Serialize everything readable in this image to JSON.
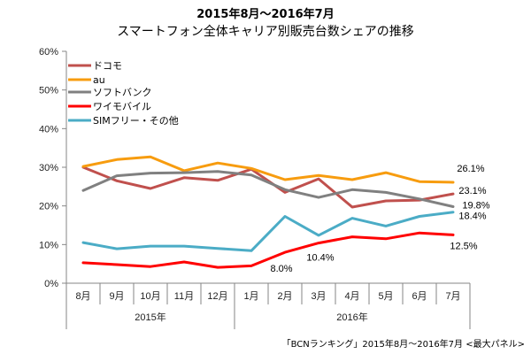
{
  "chart_data": {
    "type": "line",
    "title": "2015年8月～2016年7月",
    "subtitle": "スマートフォン全体キャリア別販売台数シェアの推移",
    "categories": [
      "8月",
      "9月",
      "10月",
      "11月",
      "12月",
      "1月",
      "2月",
      "3月",
      "4月",
      "5月",
      "6月",
      "7月"
    ],
    "year_groups": [
      {
        "label": "2015年",
        "span": 5
      },
      {
        "label": "2016年",
        "span": 7
      }
    ],
    "ylim": [
      0,
      60
    ],
    "yticks": [
      0,
      10,
      20,
      30,
      40,
      50,
      60
    ],
    "ytick_labels": [
      "0%",
      "10%",
      "20%",
      "30%",
      "40%",
      "50%",
      "60%"
    ],
    "xlabel": "",
    "ylabel": "",
    "grid": false,
    "legend_position": "top-left",
    "series": [
      {
        "name": "ドコモ",
        "color": "#c0504d",
        "values": [
          30.0,
          26.5,
          24.5,
          27.3,
          26.6,
          29.5,
          23.5,
          27.0,
          19.7,
          21.3,
          21.5,
          23.1
        ]
      },
      {
        "name": "au",
        "color": "#f79c0f",
        "values": [
          30.2,
          32.0,
          32.7,
          29.1,
          31.1,
          29.7,
          26.8,
          27.9,
          26.8,
          28.6,
          26.3,
          26.1
        ]
      },
      {
        "name": "ソフトバンク",
        "color": "#808080",
        "values": [
          24.0,
          27.8,
          28.5,
          28.6,
          28.9,
          28.0,
          24.2,
          22.2,
          24.2,
          23.5,
          21.8,
          19.8
        ]
      },
      {
        "name": "ワイモバイル",
        "color": "#ff0000",
        "values": [
          5.3,
          4.8,
          4.3,
          5.5,
          4.1,
          4.5,
          8.0,
          10.4,
          12.0,
          11.5,
          13.0,
          12.5
        ]
      },
      {
        "name": "SIMフリー・その他",
        "color": "#4bacc6",
        "values": [
          10.5,
          8.9,
          9.6,
          9.6,
          9.0,
          8.4,
          17.3,
          12.4,
          16.8,
          14.8,
          17.3,
          18.4
        ]
      }
    ],
    "annotations": [
      {
        "text": "26.1%",
        "series": 1,
        "index": 11
      },
      {
        "text": "23.1%",
        "series": 0,
        "index": 11
      },
      {
        "text": "19.8%",
        "series": 2,
        "index": 11
      },
      {
        "text": "18.4%",
        "series": 4,
        "index": 11
      },
      {
        "text": "12.5%",
        "series": 3,
        "index": 11
      },
      {
        "text": "8.0%",
        "series": 3,
        "index": 6
      },
      {
        "text": "10.4%",
        "series": 3,
        "index": 7
      }
    ],
    "source": "「BCNランキング」2015年8月～2016年7月 <最大パネル>"
  }
}
